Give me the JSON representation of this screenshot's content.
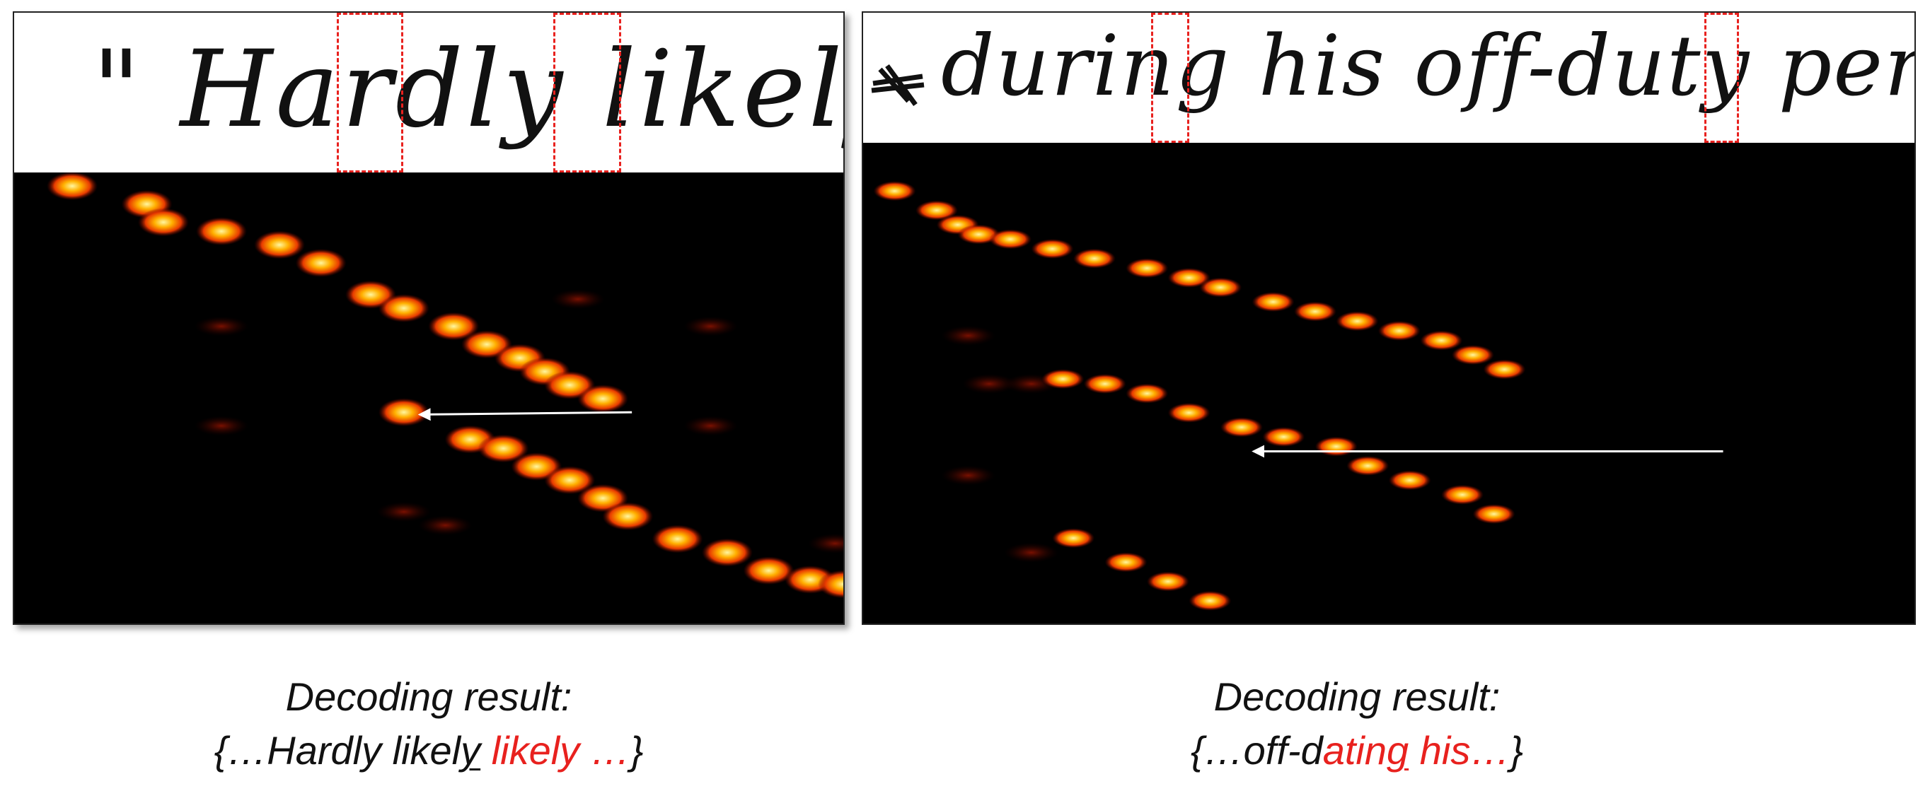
{
  "panels": [
    {
      "handwriting": "\" Hardly likely , my",
      "caption_title": "Decoding result:",
      "caption_parts": [
        {
          "text": "{…Hardly likel",
          "red": false,
          "underline": false
        },
        {
          "text": "y",
          "red": false,
          "underline": true
        },
        {
          "text": " ",
          "red": false,
          "underline": false
        },
        {
          "text": "likely …",
          "red": true,
          "underline": false
        },
        {
          "text": "}",
          "red": false,
          "underline": false
        }
      ],
      "trajectories": [
        [
          [
            0.07,
            0.03
          ],
          [
            0.16,
            0.07
          ],
          [
            0.18,
            0.11
          ],
          [
            0.25,
            0.13
          ],
          [
            0.32,
            0.16
          ],
          [
            0.37,
            0.2
          ],
          [
            0.43,
            0.27
          ],
          [
            0.47,
            0.3
          ],
          [
            0.53,
            0.34
          ],
          [
            0.57,
            0.38
          ],
          [
            0.61,
            0.41
          ],
          [
            0.64,
            0.44
          ],
          [
            0.67,
            0.47
          ],
          [
            0.71,
            0.5
          ]
        ],
        [
          [
            0.47,
            0.53
          ],
          [
            0.55,
            0.59
          ],
          [
            0.59,
            0.61
          ],
          [
            0.63,
            0.65
          ],
          [
            0.67,
            0.68
          ],
          [
            0.71,
            0.72
          ],
          [
            0.74,
            0.76
          ],
          [
            0.8,
            0.81
          ],
          [
            0.86,
            0.84
          ],
          [
            0.91,
            0.88
          ],
          [
            0.96,
            0.9
          ],
          [
            1.0,
            0.91
          ]
        ]
      ],
      "faint_spots": [
        [
          0.25,
          0.34
        ],
        [
          0.25,
          0.56
        ],
        [
          0.47,
          0.75
        ],
        [
          0.52,
          0.78
        ],
        [
          0.68,
          0.28
        ],
        [
          0.84,
          0.34
        ],
        [
          0.84,
          0.56
        ],
        [
          0.99,
          0.82
        ]
      ],
      "arrow": {
        "from": [
          0.745,
          0.53
        ],
        "to": [
          0.49,
          0.535
        ]
      },
      "dash_boxes": [
        {
          "x1": 0.389,
          "x2": 0.469
        },
        {
          "x1": 0.65,
          "x2": 0.732
        }
      ]
    },
    {
      "handwriting": "during his off-duty periods",
      "caption_title": "Decoding result:",
      "caption_parts": [
        {
          "text": "{…off-d",
          "red": false,
          "underline": false
        },
        {
          "text": "atin",
          "red": true,
          "underline": false
        },
        {
          "text": "g",
          "red": true,
          "underline": true
        },
        {
          "text": " his…",
          "red": true,
          "underline": false
        },
        {
          "text": "}",
          "red": false,
          "underline": false
        }
      ],
      "trajectories": [
        [
          [
            0.03,
            0.1
          ],
          [
            0.07,
            0.14
          ],
          [
            0.09,
            0.17
          ],
          [
            0.11,
            0.19
          ],
          [
            0.14,
            0.2
          ],
          [
            0.18,
            0.22
          ],
          [
            0.22,
            0.24
          ],
          [
            0.27,
            0.26
          ],
          [
            0.31,
            0.28
          ],
          [
            0.34,
            0.3
          ],
          [
            0.39,
            0.33
          ],
          [
            0.43,
            0.35
          ],
          [
            0.47,
            0.37
          ],
          [
            0.51,
            0.39
          ],
          [
            0.55,
            0.41
          ],
          [
            0.58,
            0.44
          ],
          [
            0.61,
            0.47
          ]
        ],
        [
          [
            0.19,
            0.49
          ],
          [
            0.23,
            0.5
          ],
          [
            0.27,
            0.52
          ],
          [
            0.31,
            0.56
          ],
          [
            0.36,
            0.59
          ],
          [
            0.4,
            0.61
          ],
          [
            0.45,
            0.63
          ],
          [
            0.48,
            0.67
          ],
          [
            0.52,
            0.7
          ],
          [
            0.57,
            0.73
          ],
          [
            0.6,
            0.77
          ]
        ],
        [
          [
            0.2,
            0.82
          ],
          [
            0.25,
            0.87
          ],
          [
            0.29,
            0.91
          ],
          [
            0.33,
            0.95
          ]
        ]
      ],
      "faint_spots": [
        [
          0.1,
          0.4
        ],
        [
          0.12,
          0.5
        ],
        [
          0.16,
          0.5
        ],
        [
          0.1,
          0.69
        ],
        [
          0.16,
          0.85
        ]
      ],
      "arrow": {
        "from": [
          0.818,
          0.64
        ],
        "to": [
          0.372,
          0.64
        ]
      },
      "dash_boxes": [
        {
          "x1": 0.274,
          "x2": 0.31
        },
        {
          "x1": 0.8,
          "x2": 0.833
        }
      ]
    }
  ]
}
